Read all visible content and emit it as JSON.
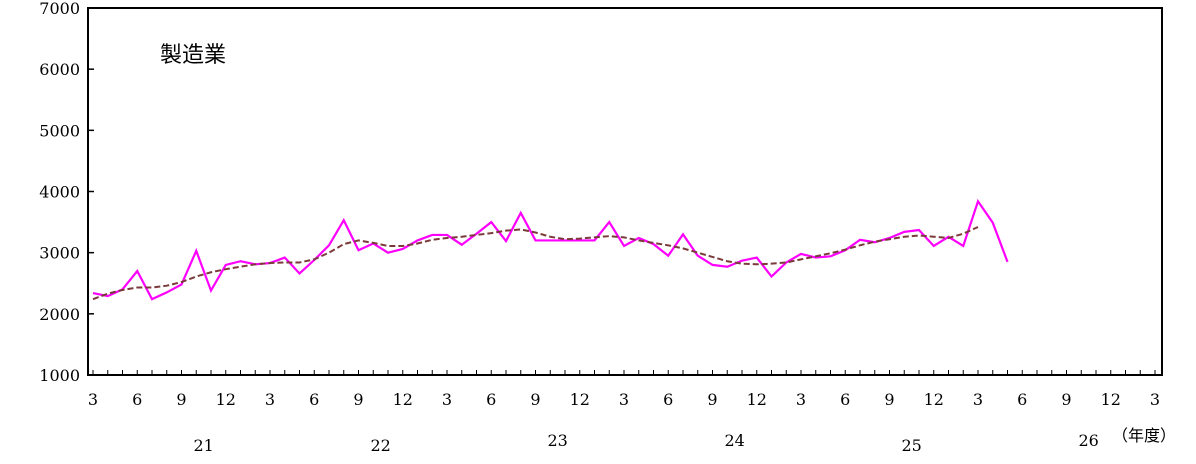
{
  "chart_data": {
    "type": "line",
    "title": "製造業",
    "ylim": [
      1000,
      7000
    ],
    "yticks": [
      "1000",
      "2000",
      "3000",
      "4000",
      "5000",
      "6000",
      "7000"
    ],
    "x_month_ticks": [
      "3",
      "6",
      "9",
      "12",
      "3",
      "6",
      "9",
      "12",
      "3",
      "6",
      "9",
      "12",
      "3",
      "6",
      "9",
      "12",
      "3",
      "6",
      "9",
      "12",
      "3",
      "6",
      "9",
      "12",
      "3"
    ],
    "year_labels": [
      "21",
      "22",
      "23",
      "24",
      "25",
      "26"
    ],
    "year_unit": "（年度）",
    "grid": false,
    "series": [
      {
        "style": "solid",
        "color": "#ff00ff",
        "values": [
          2340,
          2290,
          2400,
          2700,
          2240,
          2350,
          2480,
          3030,
          2380,
          2800,
          2860,
          2810,
          2830,
          2920,
          2660,
          2880,
          3120,
          3530,
          3040,
          3150,
          3000,
          3060,
          3200,
          3290,
          3290,
          3130,
          3310,
          3500,
          3190,
          3650,
          3200,
          3200,
          3200,
          3200,
          3200,
          3500,
          3110,
          3240,
          3140,
          2950,
          3300,
          2950,
          2800,
          2770,
          2870,
          2920,
          2610,
          2840,
          2980,
          2920,
          2940,
          3040,
          3210,
          3170,
          3240,
          3340,
          3370,
          3110,
          3260,
          3110,
          3840,
          3490,
          2850
        ]
      },
      {
        "style": "dashed",
        "color": "#7b3a3a",
        "values": [
          2240,
          2330,
          2390,
          2430,
          2430,
          2460,
          2520,
          2610,
          2680,
          2730,
          2770,
          2810,
          2830,
          2840,
          2840,
          2890,
          3000,
          3140,
          3200,
          3160,
          3110,
          3110,
          3150,
          3210,
          3240,
          3260,
          3290,
          3320,
          3360,
          3380,
          3330,
          3260,
          3220,
          3230,
          3250,
          3270,
          3250,
          3200,
          3160,
          3120,
          3070,
          3000,
          2930,
          2860,
          2820,
          2810,
          2820,
          2840,
          2890,
          2940,
          2990,
          3050,
          3120,
          3180,
          3220,
          3260,
          3280,
          3260,
          3240,
          3310,
          3420
        ]
      }
    ]
  }
}
